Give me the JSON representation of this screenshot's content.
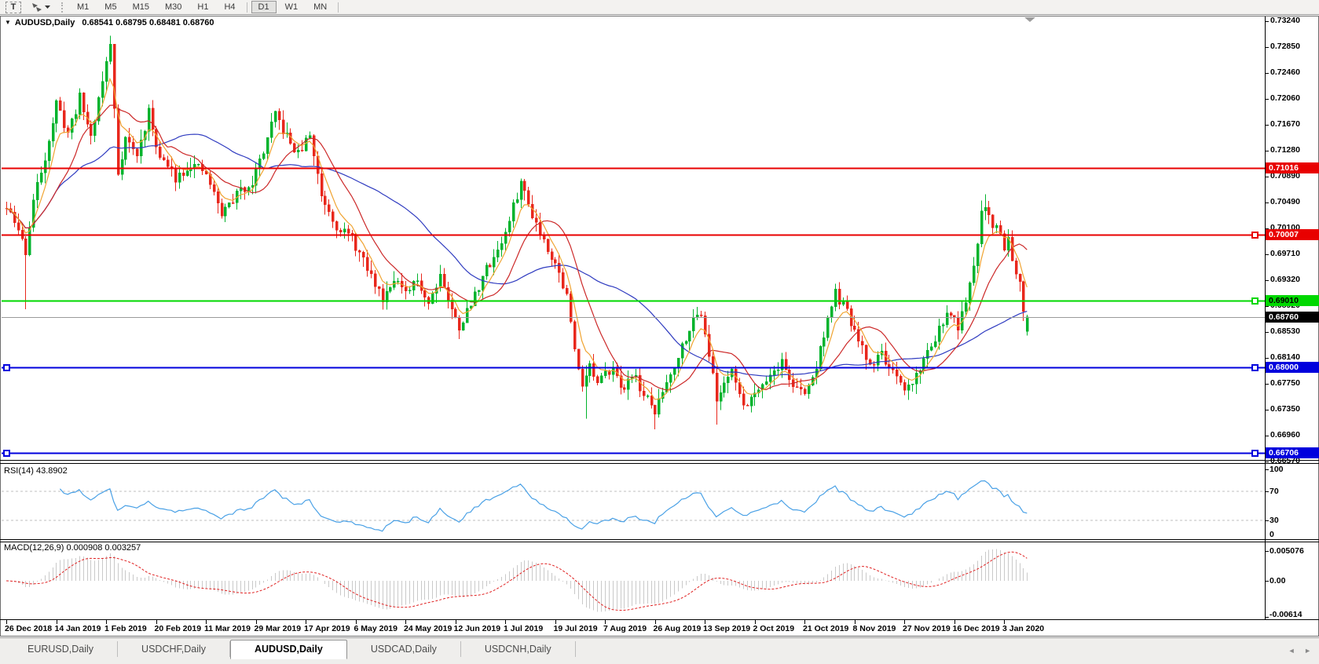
{
  "toolbar": {
    "text_tool_label": "T",
    "timeframes": [
      "M1",
      "M5",
      "M15",
      "M30",
      "H1",
      "H4",
      "D1",
      "W1",
      "MN"
    ],
    "active_timeframe": "D1"
  },
  "chart": {
    "collapse_icon": "▼",
    "title": "AUDUSD,Daily",
    "ohlc": "0.68541 0.68795 0.68481 0.68760",
    "price_axis": [
      "0.73240",
      "0.72850",
      "0.72460",
      "0.72060",
      "0.71670",
      "0.71280",
      "0.70890",
      "0.70490",
      "0.70100",
      "0.69710",
      "0.69320",
      "0.68920",
      "0.68530",
      "0.68140",
      "0.67750",
      "0.67350",
      "0.66960",
      "0.66570"
    ],
    "levels": [
      {
        "label": "0.71016",
        "value": 0.71016,
        "color": "#e80000",
        "width": 2,
        "badge_text": "#ffffff",
        "handles": []
      },
      {
        "label": "0.70007",
        "value": 0.70007,
        "color": "#e80000",
        "width": 2,
        "badge_text": "#ffffff",
        "handles": [
          "right"
        ]
      },
      {
        "label": "0.69010",
        "value": 0.6901,
        "color": "#00d800",
        "width": 2,
        "badge_text": "#000000",
        "handles": [
          "right"
        ]
      },
      {
        "label": "0.68760",
        "value": 0.6876,
        "color": "#9a9a9a",
        "width": 1,
        "badge_bg": "#000000",
        "badge_text": "#ffffff",
        "handles": []
      },
      {
        "label": "0.68000",
        "value": 0.68,
        "color": "#0000dd",
        "width": 2,
        "badge_text": "#ffffff",
        "handles": [
          "left",
          "right"
        ]
      },
      {
        "label": "0.66706",
        "value": 0.66706,
        "color": "#0000dd",
        "width": 2,
        "badge_text": "#ffffff",
        "handles": [
          "left",
          "right"
        ]
      }
    ],
    "dates": [
      "26 Dec 2018",
      "14 Jan 2019",
      "1 Feb 2019",
      "20 Feb 2019",
      "11 Mar 2019",
      "29 Mar 2019",
      "17 Apr 2019",
      "6 May 2019",
      "24 May 2019",
      "12 Jun 2019",
      "1 Jul 2019",
      "19 Jul 2019",
      "7 Aug 2019",
      "26 Aug 2019",
      "13 Sep 2019",
      "2 Oct 2019",
      "21 Oct 2019",
      "8 Nov 2019",
      "27 Nov 2019",
      "16 Dec 2019",
      "3 Jan 2020"
    ]
  },
  "rsi": {
    "label": "RSI(14) 43.8902",
    "axis": [
      "100",
      "70",
      "30",
      "0"
    ],
    "dashed_levels": [
      70,
      30
    ]
  },
  "macd": {
    "label": "MACD(12,26,9) 0.000908 0.003257",
    "axis": [
      "0.005076",
      "0.00",
      "-0.00614"
    ]
  },
  "tabs": {
    "labels": [
      "EURUSD,Daily",
      "USDCHF,Daily",
      "AUDUSD,Daily",
      "USDCAD,Daily",
      "USDCNH,Daily"
    ],
    "active_index": 2,
    "scroll_left": "◄",
    "scroll_right": "►"
  },
  "colors": {
    "candle_up": "#00b32c",
    "candle_down": "#e8271c",
    "ma_fast_orange": "#f0a432",
    "ma_mid_red": "#cc2828",
    "ma_slow_blue": "#2f3bc0",
    "rsi_line": "#4aa1e6",
    "rsi_dash": "#bfbfbf",
    "macd_histogram": "#c9c9c9",
    "macd_signal": "#e02020",
    "frame": "#6e6e6e",
    "axis_line": "#000000"
  },
  "chart_data": {
    "type": "candlestick",
    "symbol": "AUDUSD",
    "timeframe": "Daily",
    "bars": 267,
    "bars_per_date_label": 13,
    "ylim": [
      0.6657,
      0.7324
    ],
    "last_ohlc": [
      0.68541,
      0.68795,
      0.68481,
      0.6876
    ],
    "horizontal_levels": [
      0.71016,
      0.70007,
      0.6901,
      0.6876,
      0.68,
      0.66706
    ],
    "price_anchors": [
      [
        0,
        0.704
      ],
      [
        3,
        0.7008
      ],
      [
        5,
        0.6975
      ],
      [
        7,
        0.7052
      ],
      [
        10,
        0.712
      ],
      [
        13,
        0.7198
      ],
      [
        16,
        0.7155
      ],
      [
        19,
        0.7208
      ],
      [
        22,
        0.715
      ],
      [
        25,
        0.7235
      ],
      [
        27,
        0.7288
      ],
      [
        29,
        0.7095
      ],
      [
        31,
        0.7148
      ],
      [
        34,
        0.712
      ],
      [
        37,
        0.7185
      ],
      [
        40,
        0.7118
      ],
      [
        44,
        0.7088
      ],
      [
        48,
        0.7108
      ],
      [
        52,
        0.7092
      ],
      [
        56,
        0.7032
      ],
      [
        60,
        0.7062
      ],
      [
        64,
        0.7082
      ],
      [
        67,
        0.7128
      ],
      [
        70,
        0.7182
      ],
      [
        73,
        0.7148
      ],
      [
        76,
        0.7122
      ],
      [
        79,
        0.7152
      ],
      [
        82,
        0.7062
      ],
      [
        86,
        0.7015
      ],
      [
        90,
        0.6995
      ],
      [
        94,
        0.6948
      ],
      [
        98,
        0.6905
      ],
      [
        101,
        0.6938
      ],
      [
        104,
        0.6908
      ],
      [
        107,
        0.6932
      ],
      [
        110,
        0.6898
      ],
      [
        113,
        0.6942
      ],
      [
        116,
        0.6885
      ],
      [
        118,
        0.6862
      ],
      [
        121,
        0.6895
      ],
      [
        124,
        0.6938
      ],
      [
        127,
        0.6968
      ],
      [
        130,
        0.7002
      ],
      [
        132,
        0.7042
      ],
      [
        134,
        0.708
      ],
      [
        136,
        0.7048
      ],
      [
        139,
        0.7005
      ],
      [
        143,
        0.6958
      ],
      [
        146,
        0.6908
      ],
      [
        148,
        0.6825
      ],
      [
        150,
        0.6778
      ],
      [
        152,
        0.6802
      ],
      [
        154,
        0.6772
      ],
      [
        156,
        0.6788
      ],
      [
        158,
        0.6806
      ],
      [
        160,
        0.6762
      ],
      [
        163,
        0.6792
      ],
      [
        166,
        0.6758
      ],
      [
        169,
        0.6732
      ],
      [
        172,
        0.6778
      ],
      [
        175,
        0.6818
      ],
      [
        178,
        0.6862
      ],
      [
        181,
        0.6885
      ],
      [
        183,
        0.6822
      ],
      [
        185,
        0.6748
      ],
      [
        187,
        0.6778
      ],
      [
        189,
        0.6802
      ],
      [
        191,
        0.6752
      ],
      [
        193,
        0.6745
      ],
      [
        196,
        0.6772
      ],
      [
        199,
        0.6788
      ],
      [
        202,
        0.6808
      ],
      [
        205,
        0.6772
      ],
      [
        208,
        0.6758
      ],
      [
        211,
        0.68
      ],
      [
        213,
        0.6852
      ],
      [
        216,
        0.6912
      ],
      [
        219,
        0.6882
      ],
      [
        222,
        0.6838
      ],
      [
        225,
        0.6802
      ],
      [
        228,
        0.6822
      ],
      [
        231,
        0.6788
      ],
      [
        234,
        0.6762
      ],
      [
        237,
        0.6788
      ],
      [
        240,
        0.6822
      ],
      [
        243,
        0.6858
      ],
      [
        246,
        0.6882
      ],
      [
        248,
        0.6862
      ],
      [
        250,
        0.6892
      ],
      [
        252,
        0.6952
      ],
      [
        253,
        0.6992
      ],
      [
        254,
        0.7035
      ],
      [
        255,
        0.7048
      ],
      [
        256,
        0.703
      ],
      [
        257,
        0.701
      ],
      [
        258,
        0.702
      ],
      [
        259,
        0.7
      ],
      [
        260,
        0.6985
      ],
      [
        261,
        0.6995
      ],
      [
        262,
        0.6968
      ],
      [
        263,
        0.6945
      ],
      [
        264,
        0.6935
      ],
      [
        265,
        0.689
      ],
      [
        266,
        0.6876
      ]
    ],
    "wick_overrides": [
      [
        5,
        "low",
        0.6888
      ],
      [
        27,
        "high",
        0.7302
      ],
      [
        151,
        "low",
        0.6722
      ],
      [
        169,
        "low",
        0.6706
      ],
      [
        185,
        "low",
        0.6713
      ],
      [
        255,
        "high",
        0.7062
      ]
    ],
    "moving_averages": [
      {
        "name": "fast",
        "method": "ema",
        "period": 6,
        "color": "#f0a432"
      },
      {
        "name": "mid",
        "method": "sma",
        "period": 14,
        "color": "#cc2828"
      },
      {
        "name": "slow",
        "method": "sma",
        "period": 40,
        "color": "#2f3bc0"
      }
    ],
    "indicators": {
      "rsi": {
        "period": 14,
        "current": 43.8902,
        "levels": [
          70,
          30
        ],
        "range": [
          0,
          100
        ]
      },
      "macd": {
        "fast": 12,
        "slow": 26,
        "signal": 9,
        "current_main": 0.000908,
        "current_signal": 0.003257,
        "scale_max": 0.005076,
        "scale_min": -0.00614
      }
    }
  }
}
